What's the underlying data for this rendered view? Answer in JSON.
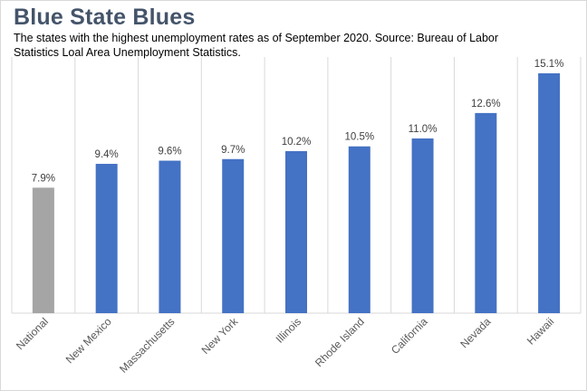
{
  "header": {
    "title": "Blue State Blues",
    "subtitle": "The states with the highest unemployment rates as of September 2020. Source: Bureau of Labor Statistics Loal Area Unemployment Statistics."
  },
  "colors": {
    "highlight": "#4472c4",
    "national": "#a5a5a5",
    "gridline": "#d9d9d9"
  },
  "chart_data": {
    "type": "bar",
    "title": "Blue State Blues",
    "subtitle": "The states with the highest unemployment rates as of September 2020. Source: Bureau of Labor Statistics Loal Area Unemployment Statistics.",
    "xlabel": "",
    "ylabel": "",
    "categories": [
      "National",
      "New Mexico",
      "Massachusetts",
      "New York",
      "Illinois",
      "Rhode Island",
      "California",
      "Nevada",
      "Hawaii"
    ],
    "values": [
      7.9,
      9.4,
      9.6,
      9.7,
      10.2,
      10.5,
      11.0,
      12.6,
      15.1
    ],
    "data_labels": [
      "7.9%",
      "9.4%",
      "9.6%",
      "9.7%",
      "10.2%",
      "10.5%",
      "11.0%",
      "12.6%",
      "15.1%"
    ],
    "bar_colors": [
      "#a5a5a5",
      "#4472c4",
      "#4472c4",
      "#4472c4",
      "#4472c4",
      "#4472c4",
      "#4472c4",
      "#4472c4",
      "#4472c4"
    ],
    "ylim": [
      0,
      15.5
    ],
    "grid": "vertical",
    "legend": "none"
  }
}
